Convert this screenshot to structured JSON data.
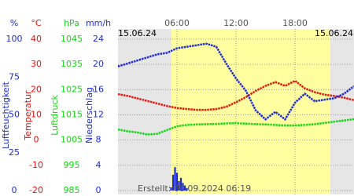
{
  "chart_data": {
    "type": "line",
    "xlim": [
      0,
      24
    ],
    "xticks": [
      {
        "value": 6,
        "label": "06:00"
      },
      {
        "value": 12,
        "label": "12:00"
      },
      {
        "value": 18,
        "label": "18:00"
      }
    ],
    "date_left": "15.06.24",
    "date_right": "15.06.24",
    "created": "Erstellt: 08.09.2024 06:19",
    "daylight": [
      5.4,
      21.6
    ],
    "grid": true,
    "axes": [
      {
        "unit": "%",
        "title": "Luftfeuchtigkeit",
        "color": "#1c2bd6",
        "lim": [
          0,
          100
        ],
        "ticks": [
          100,
          75,
          50,
          25,
          0
        ]
      },
      {
        "unit": "°C",
        "title": "Temperatur",
        "color": "#e8120c",
        "lim": [
          -20,
          40
        ],
        "ticks": [
          40,
          30,
          20,
          10,
          0,
          -10,
          -20
        ]
      },
      {
        "unit": "hPa",
        "title": "Luftdruck",
        "color": "#11d611",
        "lim": [
          985,
          1045
        ],
        "ticks": [
          1045,
          1035,
          1025,
          1015,
          1005,
          995,
          985
        ]
      },
      {
        "unit": "mm/h",
        "title": "Niederschlag",
        "color": "#1c2bd6",
        "lim": [
          0,
          24
        ],
        "ticks": [
          24,
          20,
          16,
          12,
          8,
          4,
          0
        ]
      }
    ],
    "x": [
      0,
      1,
      2,
      3,
      4,
      5,
      6,
      7,
      8,
      9,
      10,
      11,
      12,
      13,
      14,
      15,
      16,
      17,
      18,
      19,
      20,
      21,
      22,
      23,
      24
    ],
    "series": [
      {
        "color": "#11d611",
        "axis": 2,
        "values": [
          1009.2,
          1008.5,
          1008,
          1007.2,
          1007.5,
          1009,
          1010.5,
          1011,
          1011.2,
          1011.3,
          1011.4,
          1011.6,
          1011.7,
          1011.5,
          1011.3,
          1011.2,
          1011,
          1010.8,
          1010.8,
          1011,
          1011.3,
          1011.8,
          1012.3,
          1012.8,
          1013.3
        ]
      },
      {
        "color": "#e8120c",
        "axis": 1,
        "values": [
          18.2,
          17.5,
          16.5,
          15.5,
          14.5,
          13.5,
          12.7,
          12.3,
          12.0,
          12.0,
          12.3,
          13.2,
          15.0,
          17.0,
          19.5,
          21.5,
          23.0,
          21.5,
          23.5,
          20.5,
          19.0,
          18.0,
          17.5,
          16.8,
          15.8
        ]
      },
      {
        "color": "#1c2bd6",
        "axis": 0,
        "values": [
          82,
          84,
          86,
          88,
          90,
          91,
          94,
          95,
          96,
          97,
          95,
          84,
          74,
          66,
          53,
          47,
          52,
          47,
          58,
          64,
          59,
          60,
          61,
          64,
          69
        ]
      }
    ],
    "precipitation": {
      "color": "#1c2bd6",
      "axis": 3,
      "x": [
        5.4,
        5.6,
        5.8,
        6.0,
        6.2,
        6.4,
        6.6,
        6.8,
        7.0
      ],
      "values": [
        0.5,
        2.5,
        3.7,
        2.8,
        1.5,
        2.0,
        1.2,
        0.8,
        0.4
      ]
    }
  }
}
